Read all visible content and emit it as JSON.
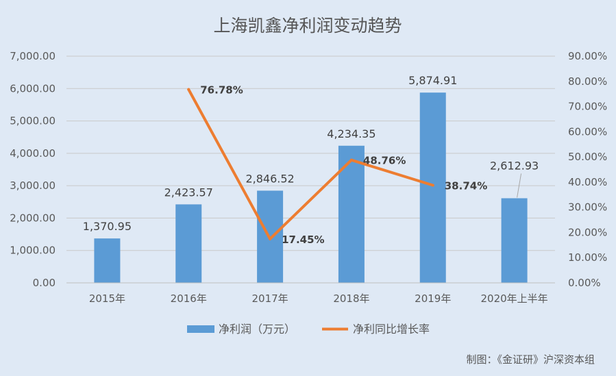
{
  "chart_data": {
    "type": "bar+line",
    "title": "上海凯鑫净利润变动趋势",
    "categories": [
      "2015年",
      "2016年",
      "2017年",
      "2018年",
      "2019年",
      "2020年上半年"
    ],
    "series": [
      {
        "name": "净利润（万元）",
        "type": "bar",
        "axis": "left",
        "values": [
          1370.95,
          2423.57,
          2846.52,
          4234.35,
          5874.91,
          2612.93
        ],
        "labels": [
          "1,370.95",
          "2,423.57",
          "2,846.52",
          "4,234.35",
          "5,874.91",
          "2,612.93"
        ],
        "color": "#5b9bd5"
      },
      {
        "name": "净利同比增长率",
        "type": "line",
        "axis": "right",
        "values": [
          null,
          76.78,
          17.45,
          48.76,
          38.74,
          null
        ],
        "labels": [
          "",
          "76.78%",
          "17.45%",
          "48.76%",
          "38.74%",
          ""
        ],
        "color": "#ed7d31"
      }
    ],
    "y_left": {
      "range": [
        0,
        7000
      ],
      "ticks": [
        "0.00",
        "1,000.00",
        "2,000.00",
        "3,000.00",
        "4,000.00",
        "5,000.00",
        "6,000.00",
        "7,000.00"
      ]
    },
    "y_right": {
      "range": [
        0,
        90
      ],
      "ticks": [
        "0.00%",
        "10.00%",
        "20.00%",
        "30.00%",
        "40.00%",
        "50.00%",
        "60.00%",
        "70.00%",
        "80.00%",
        "90.00%"
      ]
    },
    "grid": true,
    "legend_position": "bottom",
    "annotation": "制图：《金证研》沪深资本组"
  }
}
